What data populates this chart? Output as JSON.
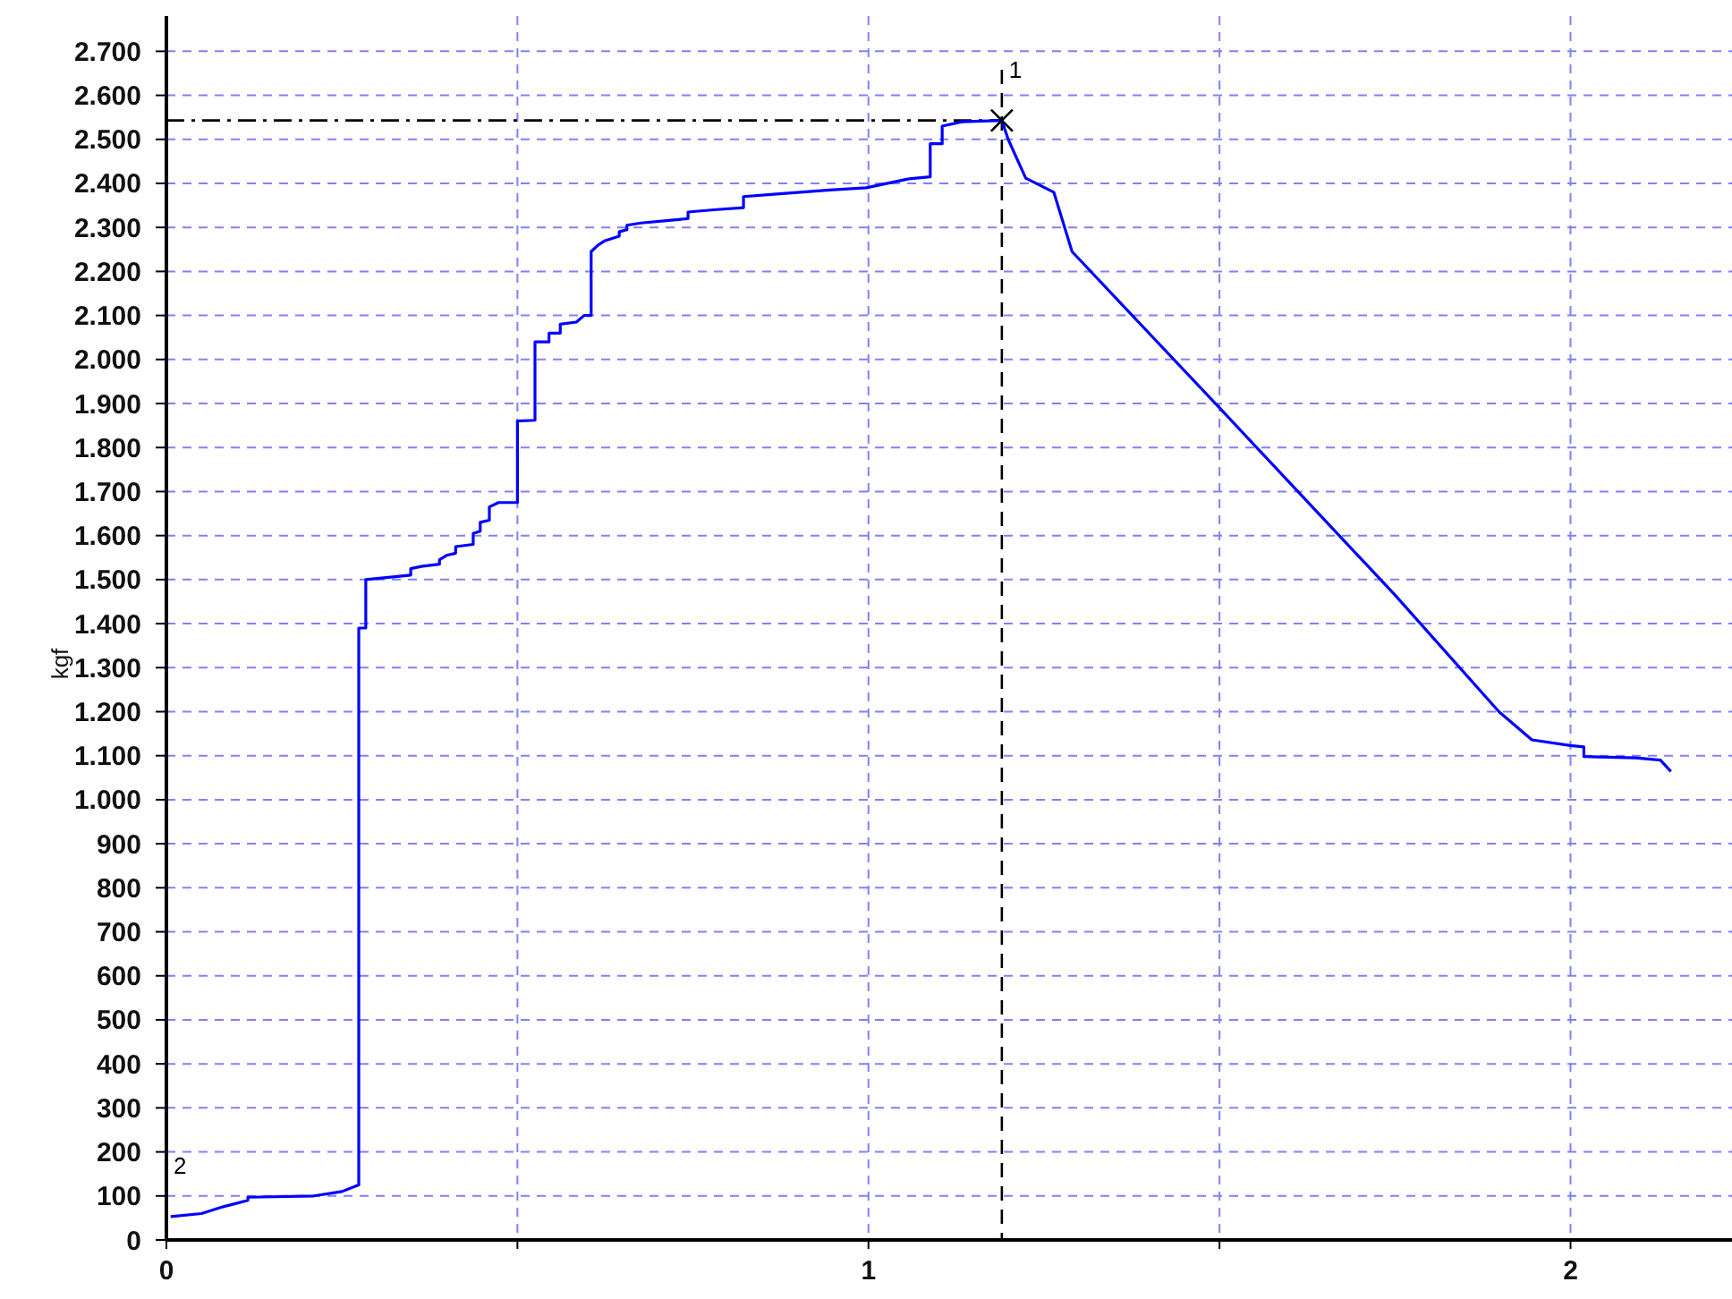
{
  "chart_data": {
    "type": "line",
    "ylabel": "kgf",
    "xlim": [
      0,
      2.23
    ],
    "ylim": [
      0,
      2780
    ],
    "xticks": [
      0,
      {
        "value": 0.5,
        "label": null
      },
      1,
      {
        "value": 1.5,
        "label": null
      },
      2
    ],
    "yticks": [
      0,
      100,
      200,
      300,
      400,
      500,
      600,
      700,
      800,
      900,
      {
        "value": 1000,
        "label": "1.000"
      },
      {
        "value": 1100,
        "label": "1.100"
      },
      {
        "value": 1200,
        "label": "1.200"
      },
      {
        "value": 1300,
        "label": "1.300"
      },
      {
        "value": 1400,
        "label": "1.400"
      },
      {
        "value": 1500,
        "label": "1.500"
      },
      {
        "value": 1600,
        "label": "1.600"
      },
      {
        "value": 1700,
        "label": "1.700"
      },
      {
        "value": 1800,
        "label": "1.800"
      },
      {
        "value": 1900,
        "label": "1.900"
      },
      {
        "value": 2000,
        "label": "2.000"
      },
      {
        "value": 2100,
        "label": "2.100"
      },
      {
        "value": 2200,
        "label": "2.200"
      },
      {
        "value": 2300,
        "label": "2.300"
      },
      {
        "value": 2400,
        "label": "2.400"
      },
      {
        "value": 2500,
        "label": "2.500"
      },
      {
        "value": 2600,
        "label": "2.600"
      },
      {
        "value": 2700,
        "label": "2.700"
      }
    ],
    "grid": true,
    "series": [
      {
        "color": "#0000ff",
        "marker": "none",
        "line_style": "solid",
        "x": [
          0.006,
          0.05,
          0.08,
          0.116,
          0.116,
          0.21,
          0.25,
          0.274,
          0.274,
          0.284,
          0.284,
          0.316,
          0.348,
          0.348,
          0.363,
          0.389,
          0.389,
          0.399,
          0.412,
          0.412,
          0.437,
          0.437,
          0.447,
          0.447,
          0.46,
          0.46,
          0.473,
          0.5,
          0.5,
          0.525,
          0.525,
          0.545,
          0.545,
          0.561,
          0.561,
          0.584,
          0.595,
          0.605,
          0.605,
          0.615,
          0.625,
          0.645,
          0.645,
          0.656,
          0.656,
          0.676,
          0.709,
          0.743,
          0.743,
          0.78,
          0.822,
          0.822,
          0.861,
          0.945,
          0.997,
          1.056,
          1.088,
          1.088,
          1.105,
          1.105,
          1.133,
          1.19,
          1.199,
          1.224,
          1.264,
          1.29,
          1.5,
          1.75,
          1.898,
          1.945,
          2.0,
          2.019,
          2.019,
          2.093,
          2.128,
          2.143
        ],
        "values": [
          53,
          60,
          75,
          90,
          97,
          100,
          110,
          125,
          1390,
          1390,
          1500,
          1505,
          1510,
          1525,
          1530,
          1535,
          1545,
          1555,
          1560,
          1575,
          1580,
          1605,
          1610,
          1630,
          1635,
          1665,
          1675,
          1675,
          1860,
          1862,
          2040,
          2040,
          2060,
          2060,
          2080,
          2085,
          2100,
          2100,
          2245,
          2260,
          2270,
          2280,
          2290,
          2295,
          2305,
          2310,
          2315,
          2320,
          2335,
          2340,
          2345,
          2370,
          2375,
          2385,
          2390,
          2410,
          2415,
          2490,
          2490,
          2530,
          2540,
          2543,
          2500,
          2412,
          2380,
          2245,
          1890,
          1465,
          1200,
          1136,
          1123,
          1120,
          1098,
          1095,
          1090,
          1064
        ]
      },
      {
        "type": "scatter",
        "color": "#000000",
        "marker": "cross",
        "x": [
          1.19
        ],
        "values": [
          2543
        ]
      }
    ],
    "ref_lines": [
      {
        "axis": "y",
        "value": 2543,
        "color": "#000000",
        "line_style": "dashdot"
      },
      {
        "axis": "x",
        "value": 1.19,
        "color": "#000000",
        "line_style": "dashed"
      }
    ],
    "annotations": [
      {
        "text": "1",
        "x": 1.19,
        "y": 2543
      },
      {
        "text": "2",
        "x": 0,
        "y": 53
      }
    ]
  }
}
